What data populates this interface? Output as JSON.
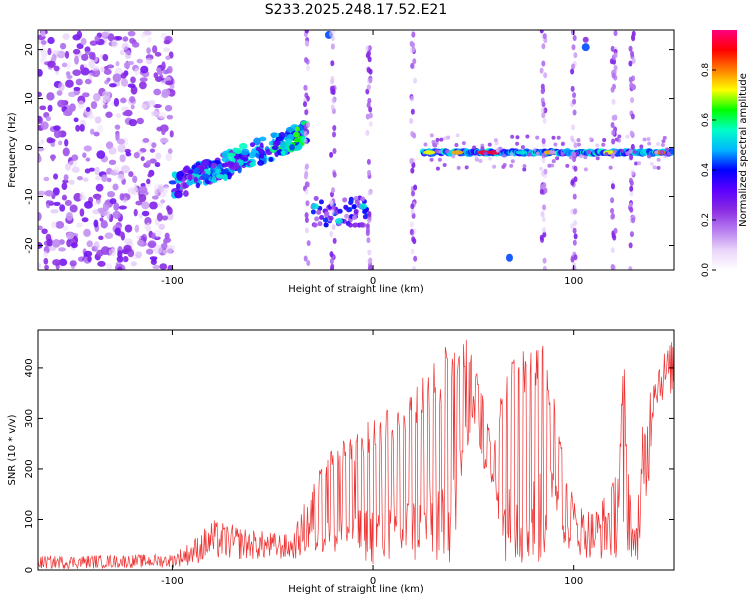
{
  "title": "S233.2025.248.17.52.E21",
  "chart_data": [
    {
      "type": "heatmap",
      "xlabel": "Height of straight line (km)",
      "ylabel": "Frequency (Hz)",
      "xlim": [
        -167,
        150
      ],
      "ylim": [
        -25,
        24
      ],
      "xticks": [
        -100,
        0,
        100
      ],
      "yticks": [
        -20,
        -10,
        0,
        10,
        20
      ],
      "grid": false,
      "colorbar": {
        "label": "Normalized spectral amplitude",
        "range": [
          0,
          0.96
        ],
        "ticks": [
          0.0,
          0.2,
          0.4,
          0.6,
          0.8
        ],
        "colors": [
          "#ffffff",
          "#e9d4f9",
          "#b77cf0",
          "#8a2be2",
          "#5b00ff",
          "#0000ff",
          "#00b7ff",
          "#00ffc8",
          "#00ff00",
          "#ffff00",
          "#ff7f00",
          "#ff0000",
          "#ff0080"
        ]
      },
      "features": [
        {
          "label": "scattered noise",
          "x": [
            -167,
            -100
          ],
          "freq": [
            -25,
            24
          ],
          "amplitude": 0.25
        },
        {
          "label": "rising tone",
          "x": [
            -100,
            -33
          ],
          "freq_start": -8,
          "freq_end": 3,
          "amplitude": 0.35
        },
        {
          "label": "lower tone",
          "x": [
            -30,
            -3
          ],
          "freq": -13,
          "amplitude": 0.3
        },
        {
          "label": "carrier line",
          "x": [
            25,
            150
          ],
          "freq": -1,
          "amplitude": 0.85
        },
        {
          "label": "upper burst",
          "x": [
            -23,
            107
          ],
          "freq": 21,
          "amplitude": 0.35
        },
        {
          "label": "lower burst",
          "x": [
            68,
            69
          ],
          "freq": -22.5,
          "amplitude": 0.35
        }
      ]
    },
    {
      "type": "line",
      "xlabel": "Height of straight line (km)",
      "ylabel": "SNR (10 * v/v)",
      "xlim": [
        -167,
        150
      ],
      "ylim": [
        0,
        475
      ],
      "xticks": [
        -100,
        0,
        100
      ],
      "yticks": [
        0,
        100,
        200,
        300,
        400
      ],
      "grid": false,
      "series": [
        {
          "color": "#ee3333",
          "envelope": {
            "x": [
              -167,
              -100,
              -90,
              -80,
              -60,
              -40,
              -30,
              -20,
              -10,
              0,
              10,
              20,
              30,
              40,
              45,
              50,
              55,
              60,
              65,
              70,
              75,
              80,
              85,
              90,
              95,
              100,
              110,
              120,
              125,
              130,
              135,
              140,
              150
            ],
            "upper": [
              28,
              32,
              60,
              100,
              80,
              70,
              180,
              240,
              280,
              300,
              330,
              360,
              420,
              460,
              470,
              430,
              340,
              240,
              380,
              420,
              450,
              460,
              470,
              350,
              220,
              140,
              120,
              180,
              440,
              60,
              320,
              410,
              460
            ],
            "lower": [
              2,
              5,
              10,
              20,
              20,
              20,
              30,
              30,
              20,
              10,
              10,
              10,
              10,
              10,
              200,
              300,
              200,
              150,
              20,
              10,
              10,
              10,
              10,
              140,
              50,
              30,
              20,
              20,
              30,
              20,
              20,
              320,
              350
            ]
          }
        }
      ]
    }
  ]
}
